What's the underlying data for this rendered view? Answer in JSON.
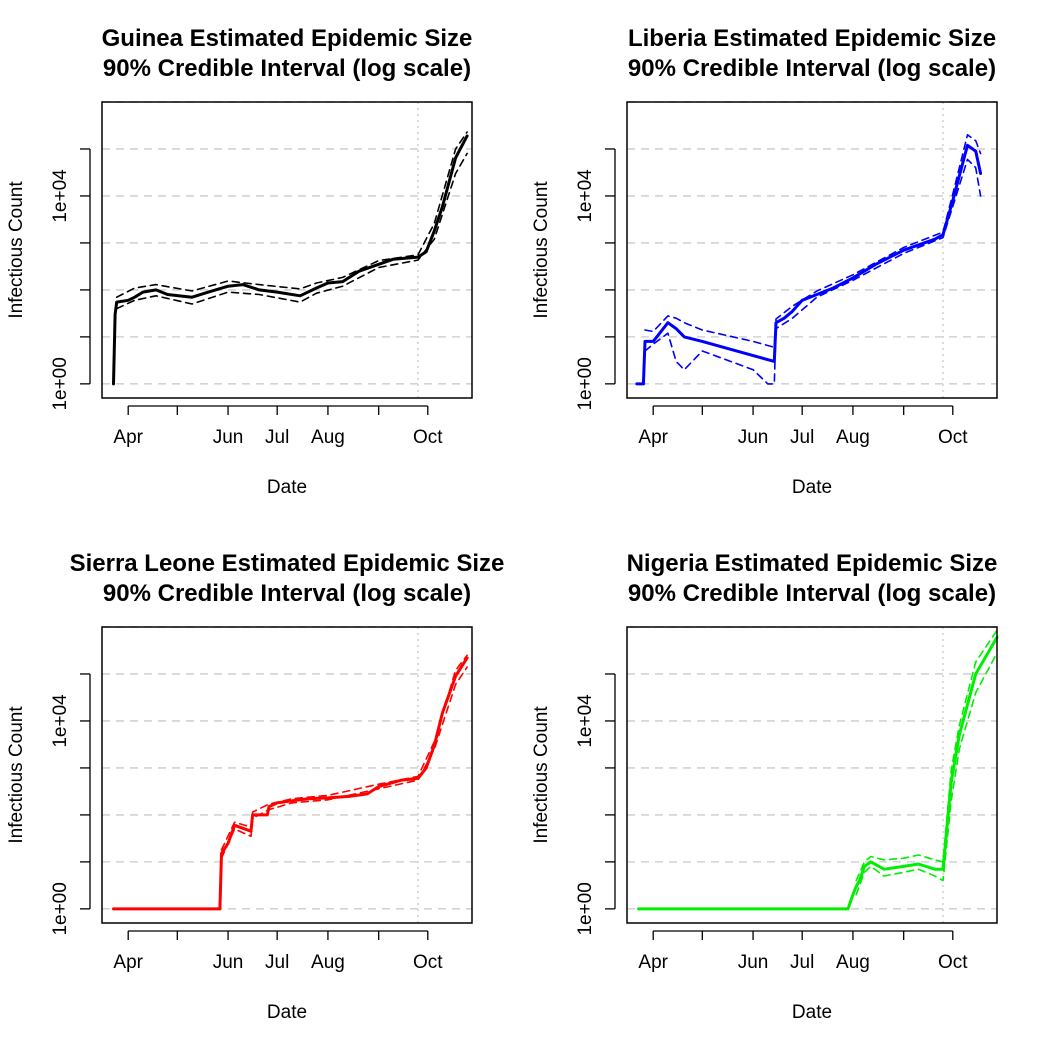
{
  "chart_data": [
    {
      "type": "line",
      "title": [
        "Guinea Estimated Epidemic Size",
        "90% Credible Interval (log scale)"
      ],
      "xlabel": "Date",
      "ylabel": "Infectious Count",
      "color": "#000000",
      "x_tick_labels": [
        "Apr",
        "Jun",
        "Jul",
        "Aug",
        "Oct"
      ],
      "x_tick_dates": [
        "2014-03-01",
        "2014-04-01",
        "2014-05-01",
        "2014-06-01",
        "2014-07-01",
        "2014-08-01",
        "2014-09-01",
        "2014-10-01"
      ],
      "y_tick_labels": [
        "1e+00",
        "1e+04"
      ],
      "y_tick_values": [
        1,
        10000
      ],
      "y_scale": "log",
      "ylim": [
        0.5,
        1000000
      ],
      "xlim": [
        "2014-03-16",
        "2014-10-28"
      ],
      "vline_date": "2014-09-25",
      "grid": "horizontal dashed",
      "series": [
        {
          "role": "median",
          "dates": [
            "2014-03-23",
            "2014-03-24",
            "2014-03-25",
            "2014-04-01",
            "2014-04-05",
            "2014-04-10",
            "2014-04-18",
            "2014-04-25",
            "2014-05-10",
            "2014-05-20",
            "2014-06-01",
            "2014-06-10",
            "2014-06-20",
            "2014-07-01",
            "2014-07-15",
            "2014-07-25",
            "2014-08-01",
            "2014-08-10",
            "2014-08-20",
            "2014-09-01",
            "2014-09-10",
            "2014-09-25",
            "2014-09-30",
            "2014-10-05",
            "2014-10-10",
            "2014-10-18",
            "2014-10-25"
          ],
          "values": [
            1,
            30,
            55,
            60,
            70,
            90,
            100,
            80,
            70,
            90,
            120,
            130,
            100,
            90,
            75,
            110,
            140,
            150,
            250,
            350,
            450,
            500,
            650,
            1800,
            6000,
            65000,
            190000
          ]
        },
        {
          "role": "lower",
          "dates": [
            "2014-03-25",
            "2014-04-05",
            "2014-04-18",
            "2014-05-10",
            "2014-06-01",
            "2014-06-20",
            "2014-07-15",
            "2014-07-25",
            "2014-08-10",
            "2014-09-01",
            "2014-09-25",
            "2014-10-05",
            "2014-10-18",
            "2014-10-25"
          ],
          "values": [
            40,
            60,
            75,
            50,
            90,
            80,
            55,
            85,
            120,
            300,
            430,
            1200,
            30000,
            80000
          ]
        },
        {
          "role": "upper",
          "dates": [
            "2014-03-25",
            "2014-04-05",
            "2014-04-18",
            "2014-05-10",
            "2014-06-01",
            "2014-06-20",
            "2014-07-15",
            "2014-07-25",
            "2014-08-10",
            "2014-09-01",
            "2014-09-25",
            "2014-10-05",
            "2014-10-18",
            "2014-10-25"
          ],
          "values": [
            70,
            110,
            130,
            95,
            155,
            130,
            105,
            140,
            185,
            420,
            560,
            2600,
            100000,
            230000
          ]
        }
      ]
    },
    {
      "type": "line",
      "title": [
        "Liberia Estimated Epidemic Size",
        "90% Credible Interval (log scale)"
      ],
      "xlabel": "Date",
      "ylabel": "Infectious Count",
      "color": "#0000ff",
      "x_tick_labels": [
        "Apr",
        "Jun",
        "Jul",
        "Aug",
        "Oct"
      ],
      "x_tick_dates": [
        "2014-03-01",
        "2014-04-01",
        "2014-05-01",
        "2014-06-01",
        "2014-07-01",
        "2014-08-01",
        "2014-09-01",
        "2014-10-01"
      ],
      "y_tick_labels": [
        "1e+00",
        "1e+04"
      ],
      "y_tick_values": [
        1,
        10000
      ],
      "y_scale": "log",
      "ylim": [
        0.5,
        1000000
      ],
      "xlim": [
        "2014-03-16",
        "2014-10-28"
      ],
      "vline_date": "2014-09-25",
      "grid": "horizontal dashed",
      "series": [
        {
          "role": "median",
          "dates": [
            "2014-03-22",
            "2014-03-26",
            "2014-03-27",
            "2014-04-01",
            "2014-04-05",
            "2014-04-10",
            "2014-04-15",
            "2014-04-20",
            "2014-05-01",
            "2014-06-01",
            "2014-06-14",
            "2014-06-15",
            "2014-06-20",
            "2014-06-25",
            "2014-07-01",
            "2014-07-10",
            "2014-07-20",
            "2014-08-01",
            "2014-08-15",
            "2014-09-01",
            "2014-09-20",
            "2014-09-25",
            "2014-10-01",
            "2014-10-10",
            "2014-10-15",
            "2014-10-18"
          ],
          "values": [
            1,
            1,
            8,
            8,
            12,
            20,
            15,
            10,
            8,
            4,
            3,
            20,
            25,
            35,
            60,
            80,
            110,
            180,
            350,
            700,
            1200,
            1500,
            8000,
            120000,
            90000,
            30000
          ]
        },
        {
          "role": "lower",
          "dates": [
            "2014-03-27",
            "2014-04-01",
            "2014-04-10",
            "2014-04-15",
            "2014-04-20",
            "2014-05-01",
            "2014-06-01",
            "2014-06-10",
            "2014-06-14",
            "2014-06-15",
            "2014-06-25",
            "2014-07-10",
            "2014-08-01",
            "2014-09-01",
            "2014-09-25",
            "2014-10-01",
            "2014-10-10",
            "2014-10-15",
            "2014-10-18"
          ],
          "values": [
            5,
            7,
            12,
            3,
            2,
            5,
            2,
            1,
            1,
            15,
            25,
            70,
            160,
            600,
            1300,
            6000,
            60000,
            40000,
            10000
          ]
        },
        {
          "role": "upper",
          "dates": [
            "2014-03-27",
            "2014-04-01",
            "2014-04-10",
            "2014-04-15",
            "2014-04-20",
            "2014-05-01",
            "2014-06-01",
            "2014-06-14",
            "2014-06-15",
            "2014-06-25",
            "2014-07-10",
            "2014-08-01",
            "2014-09-01",
            "2014-09-25",
            "2014-10-01",
            "2014-10-10",
            "2014-10-15",
            "2014-10-18"
          ],
          "values": [
            14,
            13,
            28,
            25,
            20,
            14,
            8,
            6,
            24,
            45,
            95,
            210,
            800,
            1700,
            11000,
            200000,
            150000,
            80000
          ]
        }
      ]
    },
    {
      "type": "line",
      "title": [
        "Sierra Leone Estimated Epidemic Size",
        "90% Credible Interval (log scale)"
      ],
      "xlabel": "Date",
      "ylabel": "Infectious Count",
      "color": "#ff0000",
      "x_tick_labels": [
        "Apr",
        "Jun",
        "Jul",
        "Aug",
        "Oct"
      ],
      "x_tick_dates": [
        "2014-03-01",
        "2014-04-01",
        "2014-05-01",
        "2014-06-01",
        "2014-07-01",
        "2014-08-01",
        "2014-09-01",
        "2014-10-01"
      ],
      "y_tick_labels": [
        "1e+00",
        "1e+04"
      ],
      "y_tick_values": [
        1,
        10000
      ],
      "y_scale": "log",
      "ylim": [
        0.5,
        1000000
      ],
      "xlim": [
        "2014-03-16",
        "2014-10-28"
      ],
      "vline_date": "2014-09-25",
      "grid": "horizontal dashed",
      "series": [
        {
          "role": "median",
          "dates": [
            "2014-03-23",
            "2014-05-27",
            "2014-05-28",
            "2014-06-01",
            "2014-06-05",
            "2014-06-15",
            "2014-06-16",
            "2014-06-25",
            "2014-06-26",
            "2014-07-01",
            "2014-07-10",
            "2014-07-20",
            "2014-08-01",
            "2014-08-15",
            "2014-08-25",
            "2014-09-01",
            "2014-09-15",
            "2014-09-25",
            "2014-09-30",
            "2014-10-05",
            "2014-10-10",
            "2014-10-18",
            "2014-10-25"
          ],
          "values": [
            1,
            1,
            15,
            25,
            60,
            45,
            100,
            100,
            150,
            180,
            200,
            220,
            230,
            250,
            280,
            400,
            550,
            600,
            1000,
            3000,
            15000,
            90000,
            220000
          ]
        },
        {
          "role": "lower",
          "dates": [
            "2014-05-28",
            "2014-06-05",
            "2014-06-15",
            "2014-06-16",
            "2014-06-26",
            "2014-07-10",
            "2014-08-01",
            "2014-09-01",
            "2014-09-25",
            "2014-10-05",
            "2014-10-18",
            "2014-10-25"
          ],
          "values": [
            12,
            50,
            35,
            85,
            130,
            180,
            210,
            360,
            550,
            2500,
            60000,
            140000
          ]
        },
        {
          "role": "upper",
          "dates": [
            "2014-05-28",
            "2014-06-05",
            "2014-06-15",
            "2014-06-16",
            "2014-06-26",
            "2014-07-10",
            "2014-08-01",
            "2014-09-01",
            "2014-09-25",
            "2014-10-05",
            "2014-10-18",
            "2014-10-25"
          ],
          "values": [
            18,
            70,
            55,
            115,
            170,
            220,
            260,
            450,
            660,
            3600,
            120000,
            250000
          ]
        }
      ]
    },
    {
      "type": "line",
      "title": [
        "Nigeria Estimated Epidemic Size",
        "90% Credible Interval (log scale)"
      ],
      "xlabel": "Date",
      "ylabel": "Infectious Count",
      "color": "#00ee00",
      "x_tick_labels": [
        "Apr",
        "Jun",
        "Jul",
        "Aug",
        "Oct"
      ],
      "x_tick_dates": [
        "2014-03-01",
        "2014-04-01",
        "2014-05-01",
        "2014-06-01",
        "2014-07-01",
        "2014-08-01",
        "2014-09-01",
        "2014-10-01"
      ],
      "y_tick_labels": [
        "1e+00",
        "1e+04"
      ],
      "y_tick_values": [
        1,
        10000
      ],
      "y_scale": "log",
      "ylim": [
        0.5,
        1000000
      ],
      "xlim": [
        "2014-03-16",
        "2014-10-28"
      ],
      "vline_date": "2014-09-25",
      "grid": "horizontal dashed",
      "series": [
        {
          "role": "median",
          "dates": [
            "2014-03-23",
            "2014-07-29",
            "2014-08-01",
            "2014-08-03",
            "2014-08-05",
            "2014-08-08",
            "2014-08-12",
            "2014-08-20",
            "2014-09-01",
            "2014-09-10",
            "2014-09-20",
            "2014-09-25",
            "2014-09-30",
            "2014-10-05",
            "2014-10-15",
            "2014-10-28"
          ],
          "values": [
            1,
            1,
            2,
            3,
            4,
            8,
            10,
            7,
            8,
            9,
            7,
            7,
            500,
            5000,
            100000,
            600000
          ]
        },
        {
          "role": "lower",
          "dates": [
            "2014-08-03",
            "2014-08-08",
            "2014-08-12",
            "2014-08-20",
            "2014-09-01",
            "2014-09-10",
            "2014-09-20",
            "2014-09-25",
            "2014-09-30",
            "2014-10-05",
            "2014-10-15",
            "2014-10-28"
          ],
          "values": [
            2,
            6,
            8,
            5,
            6,
            7,
            5,
            4,
            200,
            2500,
            40000,
            280000
          ]
        },
        {
          "role": "upper",
          "dates": [
            "2014-08-03",
            "2014-08-08",
            "2014-08-12",
            "2014-08-20",
            "2014-09-01",
            "2014-09-10",
            "2014-09-20",
            "2014-09-25",
            "2014-09-30",
            "2014-10-05",
            "2014-10-15",
            "2014-10-28"
          ],
          "values": [
            4,
            10,
            13,
            11,
            12,
            14,
            11,
            10,
            900,
            8000,
            180000,
            850000
          ]
        }
      ]
    }
  ]
}
